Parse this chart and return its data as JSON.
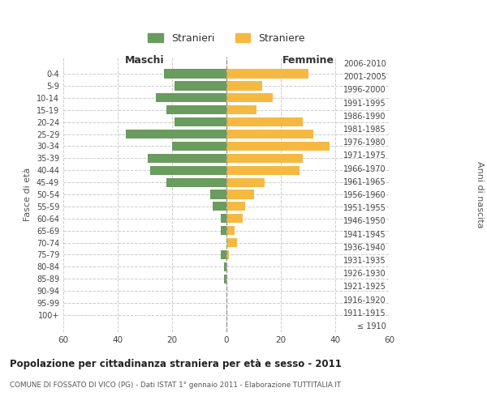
{
  "age_groups": [
    "100+",
    "95-99",
    "90-94",
    "85-89",
    "80-84",
    "75-79",
    "70-74",
    "65-69",
    "60-64",
    "55-59",
    "50-54",
    "45-49",
    "40-44",
    "35-39",
    "30-34",
    "25-29",
    "20-24",
    "15-19",
    "10-14",
    "5-9",
    "0-4"
  ],
  "birth_years": [
    "≤ 1910",
    "1911-1915",
    "1916-1920",
    "1921-1925",
    "1926-1930",
    "1931-1935",
    "1936-1940",
    "1941-1945",
    "1946-1950",
    "1951-1955",
    "1956-1960",
    "1961-1965",
    "1966-1970",
    "1971-1975",
    "1976-1980",
    "1981-1985",
    "1986-1990",
    "1991-1995",
    "1996-2000",
    "2001-2005",
    "2006-2010"
  ],
  "maschi": [
    0,
    0,
    0,
    1,
    1,
    2,
    0,
    2,
    2,
    5,
    6,
    22,
    28,
    29,
    20,
    37,
    19,
    22,
    26,
    19,
    23
  ],
  "femmine": [
    0,
    0,
    0,
    0,
    0,
    1,
    4,
    3,
    6,
    7,
    10,
    14,
    27,
    28,
    38,
    32,
    28,
    11,
    17,
    13,
    30
  ],
  "male_color": "#6a9b5f",
  "female_color": "#f5b942",
  "title": "Popolazione per cittadinanza straniera per età e sesso - 2011",
  "subtitle": "COMUNE DI FOSSATO DI VICO (PG) - Dati ISTAT 1° gennaio 2011 - Elaborazione TUTTITALIA.IT",
  "xlabel_left": "Maschi",
  "xlabel_right": "Femmine",
  "ylabel_left": "Fasce di età",
  "ylabel_right": "Anni di nascita",
  "legend_male": "Stranieri",
  "legend_female": "Straniere",
  "xlim": 60,
  "background_color": "#ffffff",
  "grid_color": "#cccccc"
}
